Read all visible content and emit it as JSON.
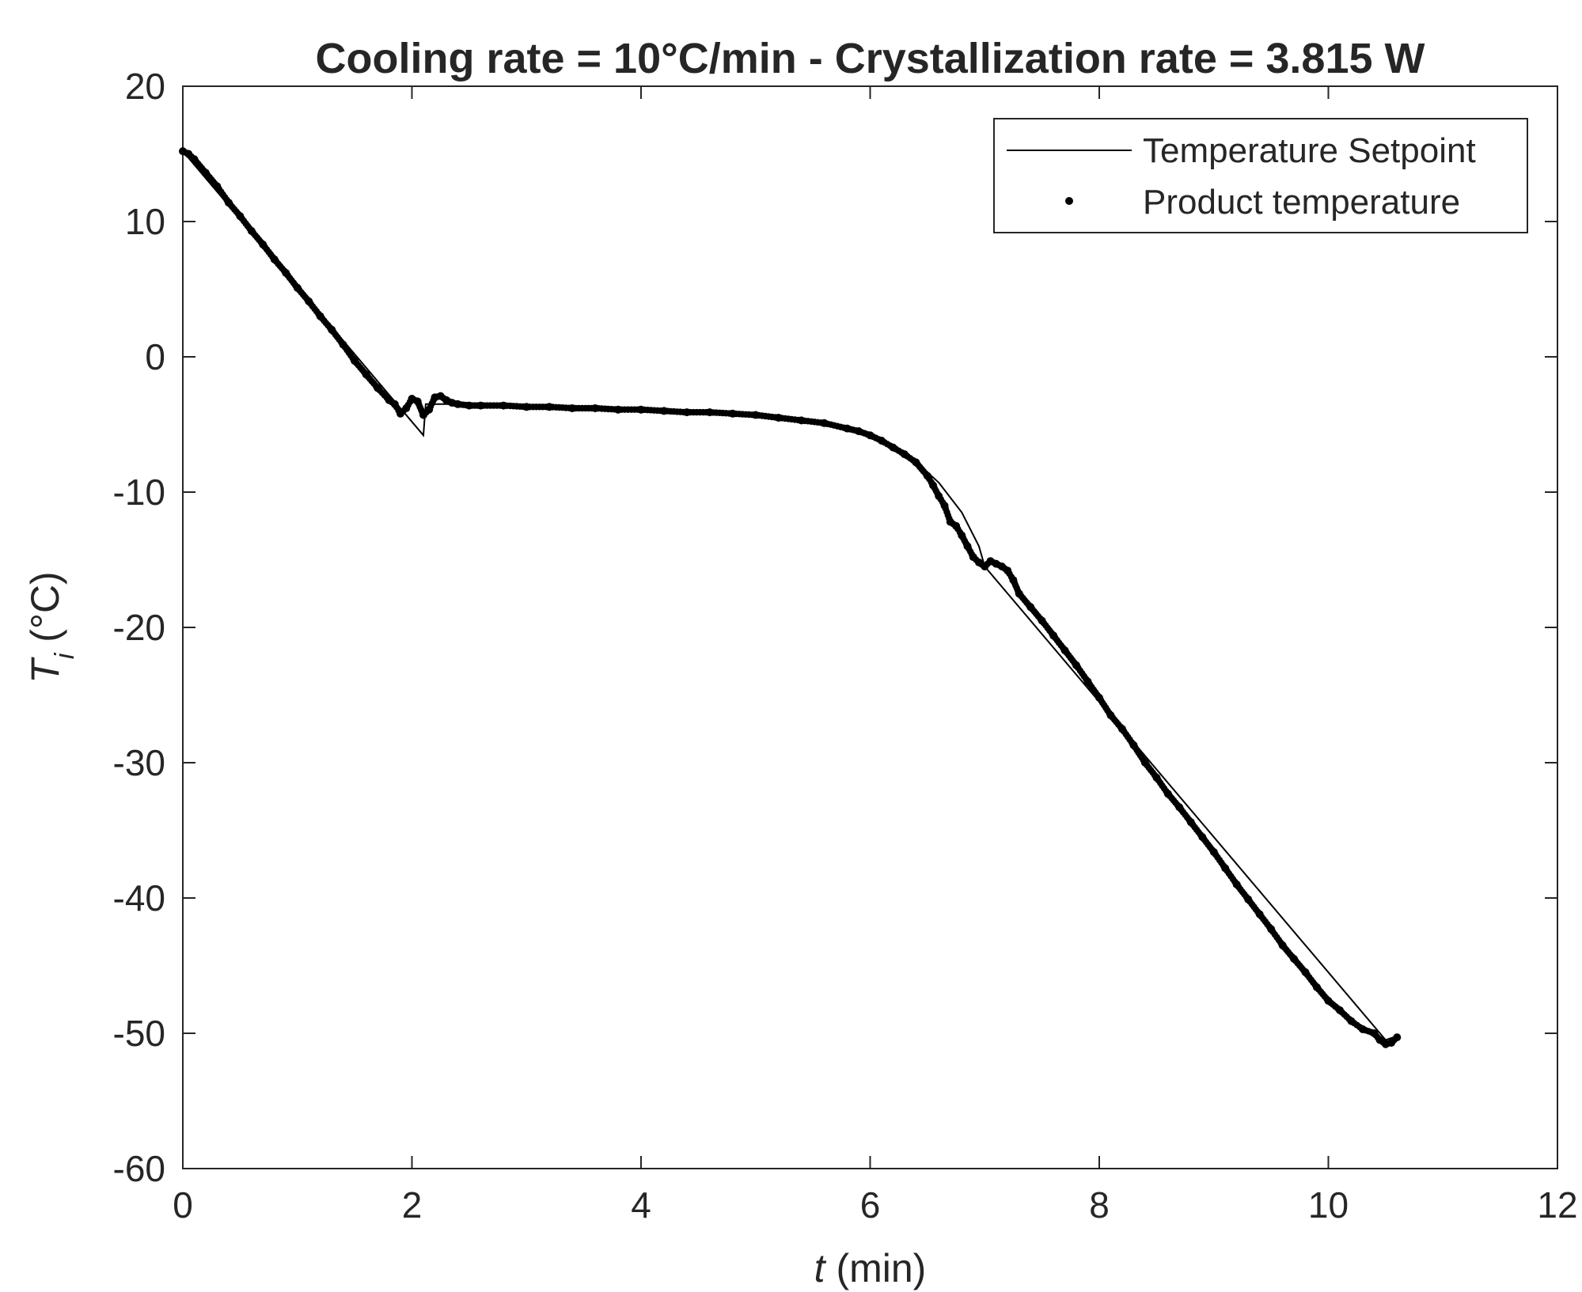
{
  "chart_data": {
    "type": "line",
    "title": "Cooling rate = 10°C/min - Crystallization rate = 3.815 W",
    "xlabel": {
      "symbol": "t",
      "subscript": "",
      "unit": " (min)"
    },
    "ylabel": {
      "symbol": "T",
      "subscript": "i",
      "unit": " (°C)"
    },
    "xlim": [
      0,
      12
    ],
    "ylim": [
      -60,
      20
    ],
    "xticks": [
      0,
      2,
      4,
      6,
      8,
      10,
      12
    ],
    "yticks": [
      20,
      10,
      0,
      -10,
      -20,
      -30,
      -40,
      -50,
      -60
    ],
    "grid": false,
    "legend": {
      "position": "top-right"
    },
    "series": [
      {
        "name": "Temperature Setpoint",
        "style": "line",
        "color": "#000000",
        "x": [
          0,
          2.1,
          2.12,
          2.3,
          5.0,
          5.5,
          6.0,
          6.3,
          6.6,
          6.8,
          6.95,
          7.0,
          10.5,
          10.6
        ],
        "y": [
          15.2,
          -5.8,
          -3.5,
          -3.5,
          -4.4,
          -4.9,
          -5.7,
          -7.0,
          -9.3,
          -11.5,
          -14.0,
          -15.5,
          -50.5,
          -50.2
        ]
      },
      {
        "name": "Product temperature",
        "style": "markers",
        "color": "#000000",
        "x": [
          0,
          0.05,
          0.1,
          0.2,
          0.3,
          0.4,
          0.5,
          0.6,
          0.7,
          0.8,
          0.9,
          1.0,
          1.1,
          1.2,
          1.3,
          1.4,
          1.5,
          1.6,
          1.7,
          1.8,
          1.85,
          1.9,
          1.95,
          2.0,
          2.05,
          2.1,
          2.15,
          2.2,
          2.25,
          2.3,
          2.35,
          2.4,
          2.5,
          2.6,
          2.8,
          3.0,
          3.2,
          3.4,
          3.6,
          3.8,
          4.0,
          4.2,
          4.4,
          4.6,
          4.8,
          5.0,
          5.2,
          5.4,
          5.6,
          5.8,
          5.9,
          6.0,
          6.1,
          6.2,
          6.3,
          6.4,
          6.5,
          6.55,
          6.6,
          6.65,
          6.7,
          6.75,
          6.8,
          6.85,
          6.9,
          6.95,
          7.0,
          7.05,
          7.1,
          7.15,
          7.2,
          7.25,
          7.3,
          7.4,
          7.5,
          7.6,
          7.7,
          7.8,
          7.9,
          8.0,
          8.1,
          8.2,
          8.3,
          8.4,
          8.5,
          8.6,
          8.7,
          8.8,
          8.9,
          9.0,
          9.1,
          9.2,
          9.3,
          9.4,
          9.5,
          9.6,
          9.7,
          9.8,
          9.9,
          10.0,
          10.1,
          10.2,
          10.3,
          10.4,
          10.45,
          10.5,
          10.55,
          10.6
        ],
        "y": [
          15.2,
          15.0,
          14.6,
          13.6,
          12.6,
          11.4,
          10.4,
          9.3,
          8.3,
          7.2,
          6.2,
          5.1,
          4.1,
          3.0,
          2.0,
          0.9,
          -0.3,
          -1.3,
          -2.3,
          -3.2,
          -3.5,
          -4.2,
          -3.8,
          -3.1,
          -3.3,
          -4.3,
          -3.9,
          -3.0,
          -2.9,
          -3.2,
          -3.4,
          -3.5,
          -3.6,
          -3.6,
          -3.6,
          -3.7,
          -3.7,
          -3.8,
          -3.8,
          -3.9,
          -3.9,
          -4.0,
          -4.1,
          -4.1,
          -4.2,
          -4.3,
          -4.5,
          -4.7,
          -4.9,
          -5.3,
          -5.5,
          -5.8,
          -6.2,
          -6.7,
          -7.2,
          -7.8,
          -8.8,
          -9.5,
          -10.3,
          -11.0,
          -12.2,
          -12.5,
          -13.2,
          -14.0,
          -14.8,
          -15.2,
          -15.5,
          -15.1,
          -15.3,
          -15.5,
          -15.8,
          -16.5,
          -17.5,
          -18.5,
          -19.5,
          -20.6,
          -21.7,
          -22.8,
          -24.0,
          -25.2,
          -26.5,
          -27.5,
          -28.7,
          -30.0,
          -31.1,
          -32.3,
          -33.3,
          -34.4,
          -35.5,
          -36.6,
          -37.8,
          -39.0,
          -40.1,
          -41.2,
          -42.3,
          -43.5,
          -44.5,
          -45.5,
          -46.6,
          -47.6,
          -48.3,
          -49.1,
          -49.7,
          -50.0,
          -50.5,
          -50.8,
          -50.7,
          -50.3
        ]
      }
    ]
  }
}
